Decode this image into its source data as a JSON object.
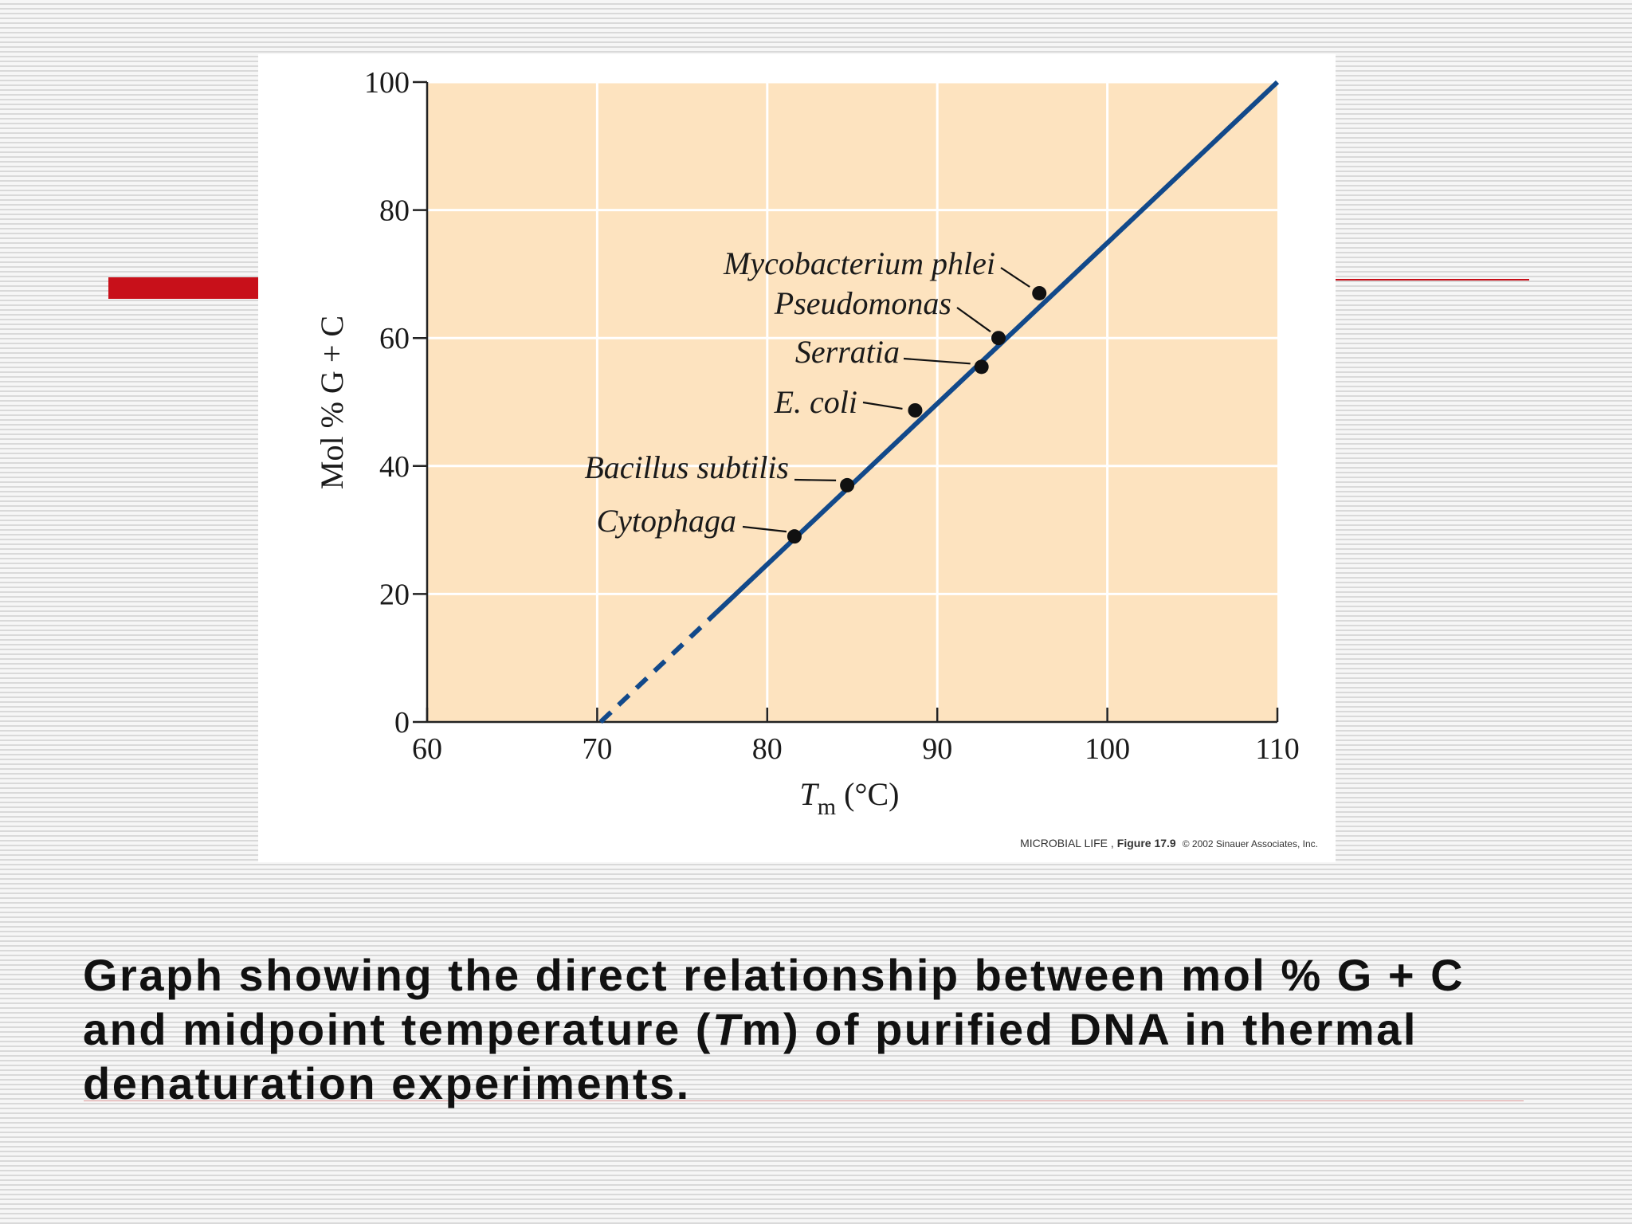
{
  "slide": {
    "caption_part1": "Graph showing the direct relationship between mol % G + C and midpoint temperature (",
    "caption_italic": "T",
    "caption_part2": "m) of purified DNA in thermal denaturation experiments."
  },
  "figure": {
    "credit_source": "MICROBIAL LIFE ,",
    "credit_figure": "Figure 17.9",
    "credit_copyright": "© 2002 Sinauer Associates, Inc."
  },
  "chart_data": {
    "type": "scatter",
    "xlabel_main": "T",
    "xlabel_sub": "m",
    "xlabel_unit": "(°C)",
    "ylabel": "Mol % G + C",
    "xlim": [
      60,
      110
    ],
    "ylim": [
      0,
      100
    ],
    "x_ticks": [
      60,
      70,
      80,
      90,
      100,
      110
    ],
    "y_ticks": [
      0,
      20,
      40,
      60,
      80,
      100
    ],
    "grid": true,
    "plot_background": "#fde3bf",
    "line_color": "#12498a",
    "fit_line": {
      "start": [
        70.2,
        0
      ],
      "end": [
        110,
        100
      ],
      "dashed_until_y": 17
    },
    "points": [
      {
        "label": "Cytophaga",
        "x": 81.6,
        "y": 29
      },
      {
        "label": "Bacillus subtilis",
        "x": 84.7,
        "y": 37
      },
      {
        "label": "E. coli",
        "x": 88.7,
        "y": 48.7
      },
      {
        "label": "Serratia",
        "x": 92.6,
        "y": 55.5
      },
      {
        "label": "Pseudomonas",
        "x": 93.6,
        "y": 60
      },
      {
        "label": "Mycobacterium phlei",
        "x": 96.0,
        "y": 67
      }
    ]
  }
}
